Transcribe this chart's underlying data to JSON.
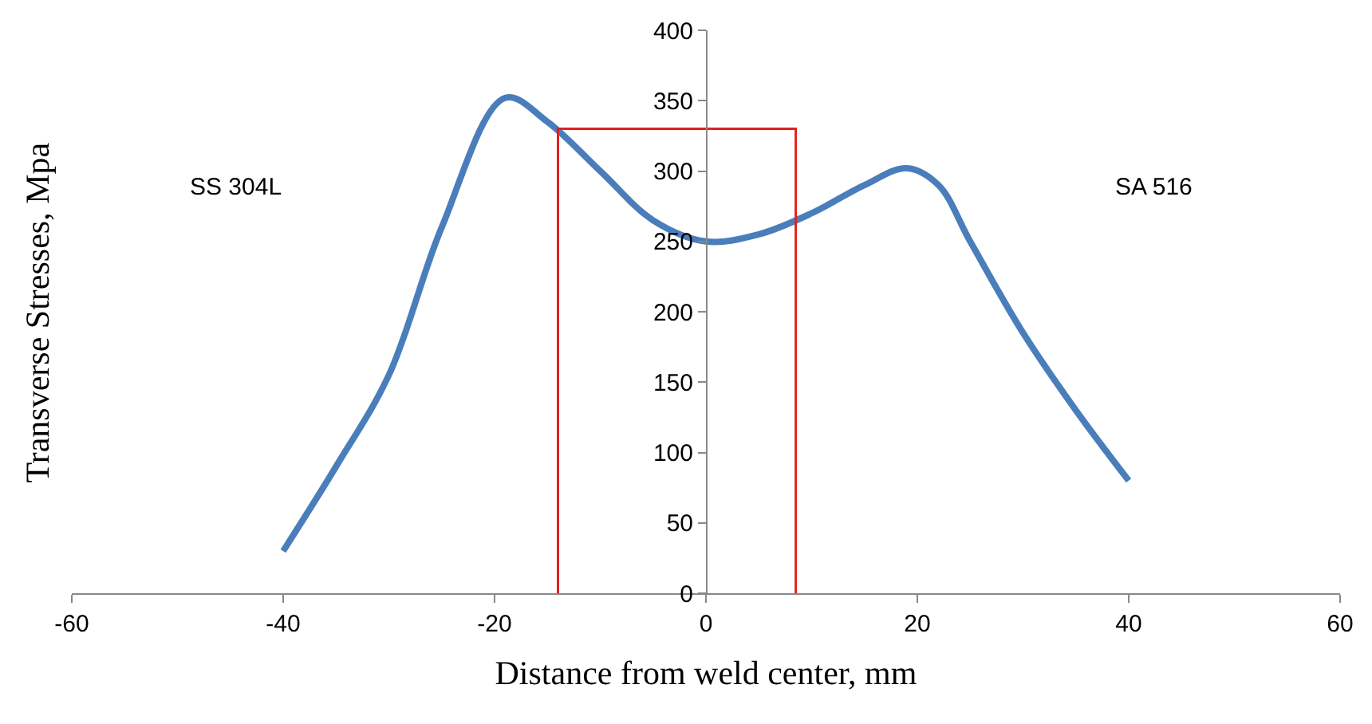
{
  "chart_data": {
    "type": "line",
    "xlabel": "Distance from weld center, mm",
    "ylabel": "Transverse Stresses, Mpa",
    "xlim": [
      -60,
      60
    ],
    "xticks": [
      -60,
      -40,
      -20,
      0,
      20,
      40,
      60
    ],
    "ylim": [
      0,
      400
    ],
    "yticks": [
      0,
      50,
      100,
      150,
      200,
      250,
      300,
      350,
      400
    ],
    "marker": "none",
    "line_style": "solid",
    "series": [
      {
        "color": "#4a7ebb",
        "x": [
          -40,
          -35,
          -30,
          -25,
          -19,
          -15,
          -10,
          -5,
          0,
          5,
          10,
          15,
          19,
          22,
          25,
          30,
          35,
          40
        ],
        "values": [
          30,
          90,
          155,
          260,
          352,
          335,
          300,
          265,
          250,
          255,
          270,
          290,
          302,
          290,
          250,
          185,
          130,
          80
        ]
      },
      {
        "color": "#e02020",
        "x": [
          -14,
          -14,
          8.5,
          8.5
        ],
        "values": [
          0,
          330,
          330,
          0
        ]
      }
    ],
    "annotations": [
      "SS 304L",
      "SA 516"
    ]
  }
}
